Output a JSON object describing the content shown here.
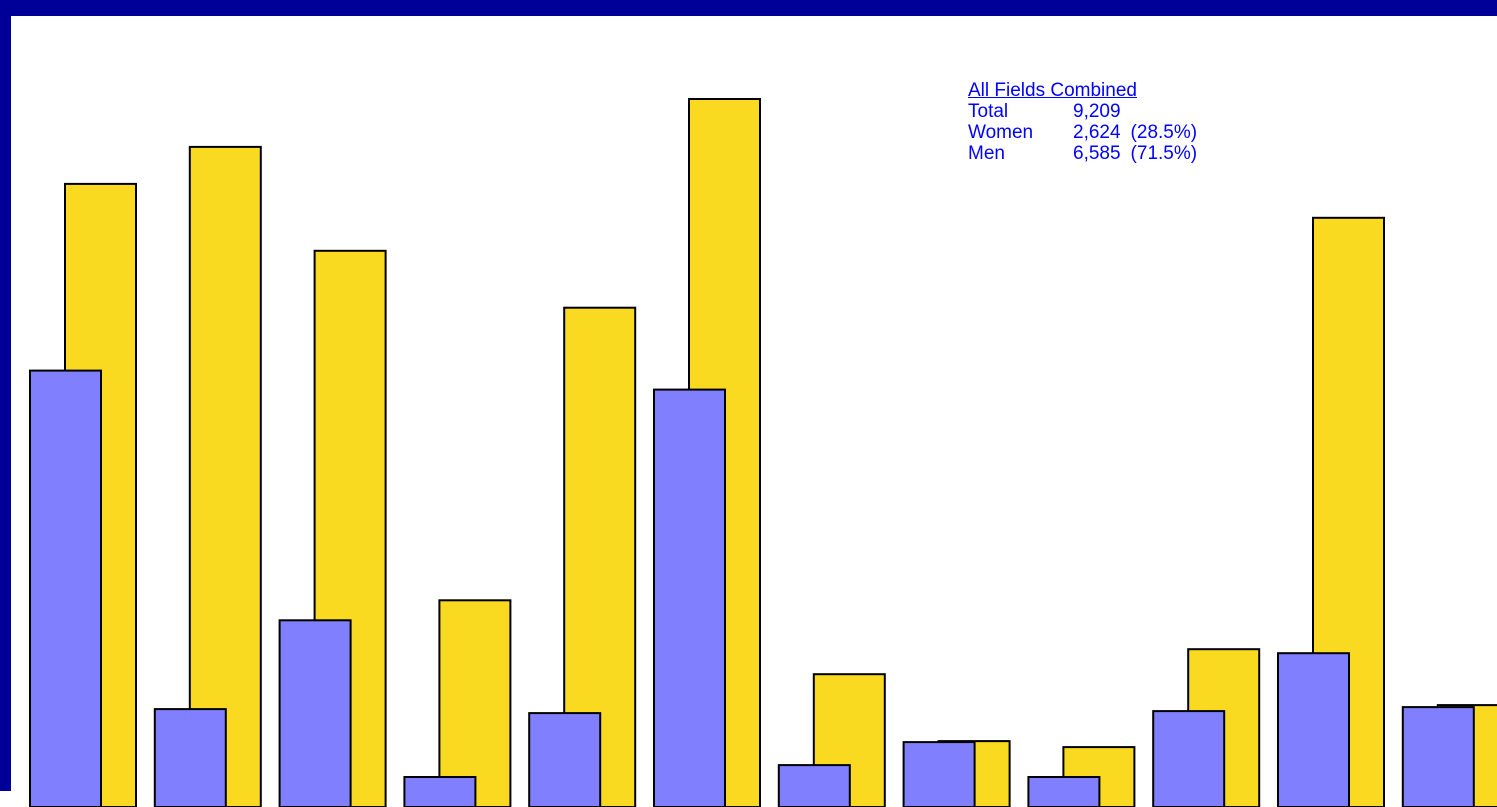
{
  "colors": {
    "frame": "#000099",
    "women": "#8080ff",
    "men": "#f9da20",
    "outline": "#000000",
    "text": "#0000ff"
  },
  "summary": {
    "title": "All Fields Combined",
    "rows": [
      {
        "key": "Total",
        "value": "9,209",
        "pct": ""
      },
      {
        "key": "Women",
        "value": "2,624",
        "pct": "(28.5%)"
      },
      {
        "key": "Men",
        "value": "6,585",
        "pct": "(71.5%)"
      }
    ]
  },
  "chart_data": {
    "type": "bar",
    "categories": [
      "",
      "",
      "",
      "",
      "",
      "",
      "",
      "",
      "",
      "",
      "",
      ""
    ],
    "ylim": [
      0,
      720
    ],
    "series": [
      {
        "color": "#8080ff",
        "values": [
          437,
          98,
          187,
          30,
          94,
          418,
          42,
          65,
          30,
          96,
          154,
          100
        ]
      },
      {
        "color": "#f9da20",
        "values": [
          624,
          661,
          557,
          207,
          500,
          709,
          133,
          66,
          60,
          158,
          590,
          102
        ]
      }
    ]
  }
}
